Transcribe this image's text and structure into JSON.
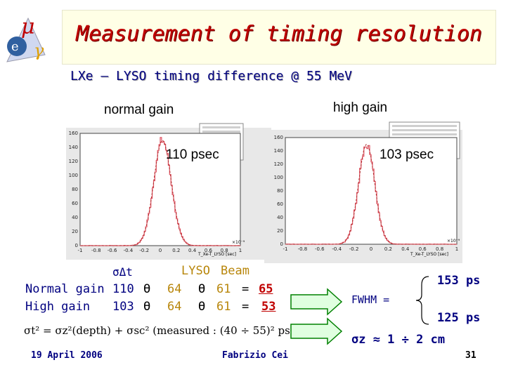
{
  "title": "Measurement of timing resolution",
  "logo": {
    "symbols": [
      "μ",
      "e",
      "γ"
    ]
  },
  "subtitle": "LXe – LYSO timing difference @ 55 MeV",
  "plots": {
    "left": {
      "label": "normal gain",
      "annotation": "110 psec",
      "yticks": [
        "160",
        "140",
        "120",
        "100",
        "80",
        "60",
        "40",
        "20",
        "0"
      ],
      "xticks": [
        "-1",
        "-0.8",
        "-0.6",
        "-0.4",
        "-0.2",
        "0",
        "0.2",
        "0.4",
        "0.6",
        "0.8",
        "1"
      ],
      "exponent": "×10⁻⁹",
      "xaxis_label": "T_Xe-T_LYSO [sec]"
    },
    "right": {
      "label": "high gain",
      "annotation": "103 psec",
      "yticks": [
        "160",
        "140",
        "120",
        "100",
        "80",
        "60",
        "40",
        "20",
        "0"
      ],
      "xticks": [
        "-1",
        "-0.8",
        "-0.6",
        "-0.4",
        "-0.2",
        "0",
        "0.2",
        "0.4",
        "0.6",
        "0.8",
        "1"
      ],
      "exponent": "×10⁻⁹",
      "xaxis_label": "T_Xe-T_LYSO [sec]"
    }
  },
  "table": {
    "header": {
      "sigma": "σΔt",
      "lyso": "LYSO",
      "beam": "Beam"
    },
    "rows": [
      {
        "label": "Normal gain",
        "sigma": "110",
        "op1": "ϴ",
        "lyso": "64",
        "op2": "ϴ",
        "beam": "61",
        "eq": "=",
        "result": "65"
      },
      {
        "label": "High gain",
        "sigma": "103",
        "op1": "ϴ",
        "lyso": "64",
        "op2": "ϴ",
        "beam": "61",
        "eq": "=",
        "result": "53"
      }
    ]
  },
  "formula": {
    "text": "σt² = σz²(depth) + σsc² (measured : (40 ÷ 55)² ps²)"
  },
  "fwhm": {
    "label": "FWHM =",
    "values": [
      "153 ps",
      "125 ps"
    ]
  },
  "sigma_z": {
    "text": "σz ≈ 1 ÷ 2 cm"
  },
  "footer": {
    "date": "19 April 2006",
    "author": "Fabrizio Cei",
    "page": "31"
  },
  "colors": {
    "title": "#c00000",
    "subtitle": "#000080",
    "histogram": "#e05060",
    "fit": "#b03030",
    "arrow_fill": "#e0ffe0",
    "arrow_stroke": "#008000"
  }
}
